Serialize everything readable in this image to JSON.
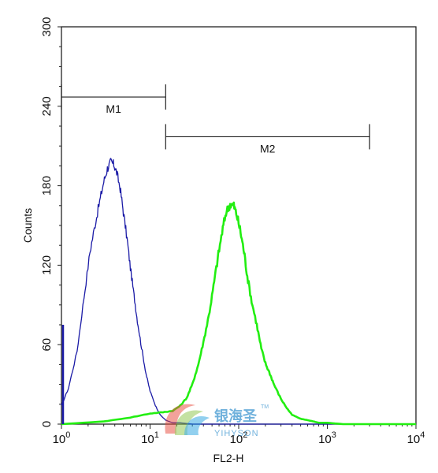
{
  "chart_data": {
    "type": "histogram",
    "xlabel": "FL2-H",
    "ylabel": "Counts",
    "xscale": "log",
    "xlim": [
      1,
      10000
    ],
    "ylim": [
      0,
      300
    ],
    "x_ticks": [
      {
        "base": "10",
        "exp": "0"
      },
      {
        "base": "10",
        "exp": "1"
      },
      {
        "base": "10",
        "exp": "2"
      },
      {
        "base": "10",
        "exp": "3"
      },
      {
        "base": "10",
        "exp": "4"
      }
    ],
    "y_ticks": [
      "0",
      "60",
      "120",
      "180",
      "240",
      "300"
    ],
    "markers": [
      {
        "label": "M1",
        "x_start": 1,
        "x_end": 15,
        "y": 247
      },
      {
        "label": "M2",
        "x_start": 15,
        "x_end": 3000,
        "y": 217
      }
    ],
    "series": [
      {
        "color": "#1a1aa6",
        "x": [
          1,
          1.2,
          1.5,
          1.8,
          2.1,
          2.4,
          2.7,
          3.0,
          3.3,
          3.6,
          3.9,
          4.2,
          4.6,
          5.0,
          5.5,
          6.0,
          6.6,
          7.2,
          8.0,
          9.0,
          10,
          11.5,
          13,
          15,
          18,
          22,
          30,
          50,
          100,
          1000,
          10000
        ],
        "y": [
          14,
          27,
          55,
          96,
          130,
          151,
          168,
          183,
          193,
          198,
          196,
          190,
          178,
          160,
          140,
          118,
          97,
          78,
          58,
          38,
          25,
          14,
          7,
          3,
          1,
          1,
          0,
          0,
          0,
          0,
          0
        ]
      },
      {
        "color": "#22ee11",
        "x": [
          1,
          3,
          6,
          10,
          14,
          18,
          22,
          26,
          30,
          35,
          40,
          46,
          52,
          58,
          65,
          72,
          80,
          88,
          95,
          105,
          115,
          125,
          140,
          160,
          180,
          200,
          225,
          250,
          300,
          350,
          400,
          500,
          600,
          700,
          800,
          1000,
          1500,
          3000,
          10000
        ],
        "y": [
          0,
          2,
          5,
          8,
          9,
          10,
          14,
          20,
          30,
          45,
          62,
          82,
          104,
          125,
          145,
          160,
          166,
          165,
          158,
          145,
          130,
          112,
          93,
          75,
          57,
          46,
          38,
          30,
          19,
          12,
          7,
          4,
          3,
          2,
          1,
          1,
          0,
          0,
          0
        ]
      }
    ]
  },
  "watermark": {
    "name_cn": "银海圣",
    "name_en": "YIHYSON",
    "tm": "TM"
  }
}
